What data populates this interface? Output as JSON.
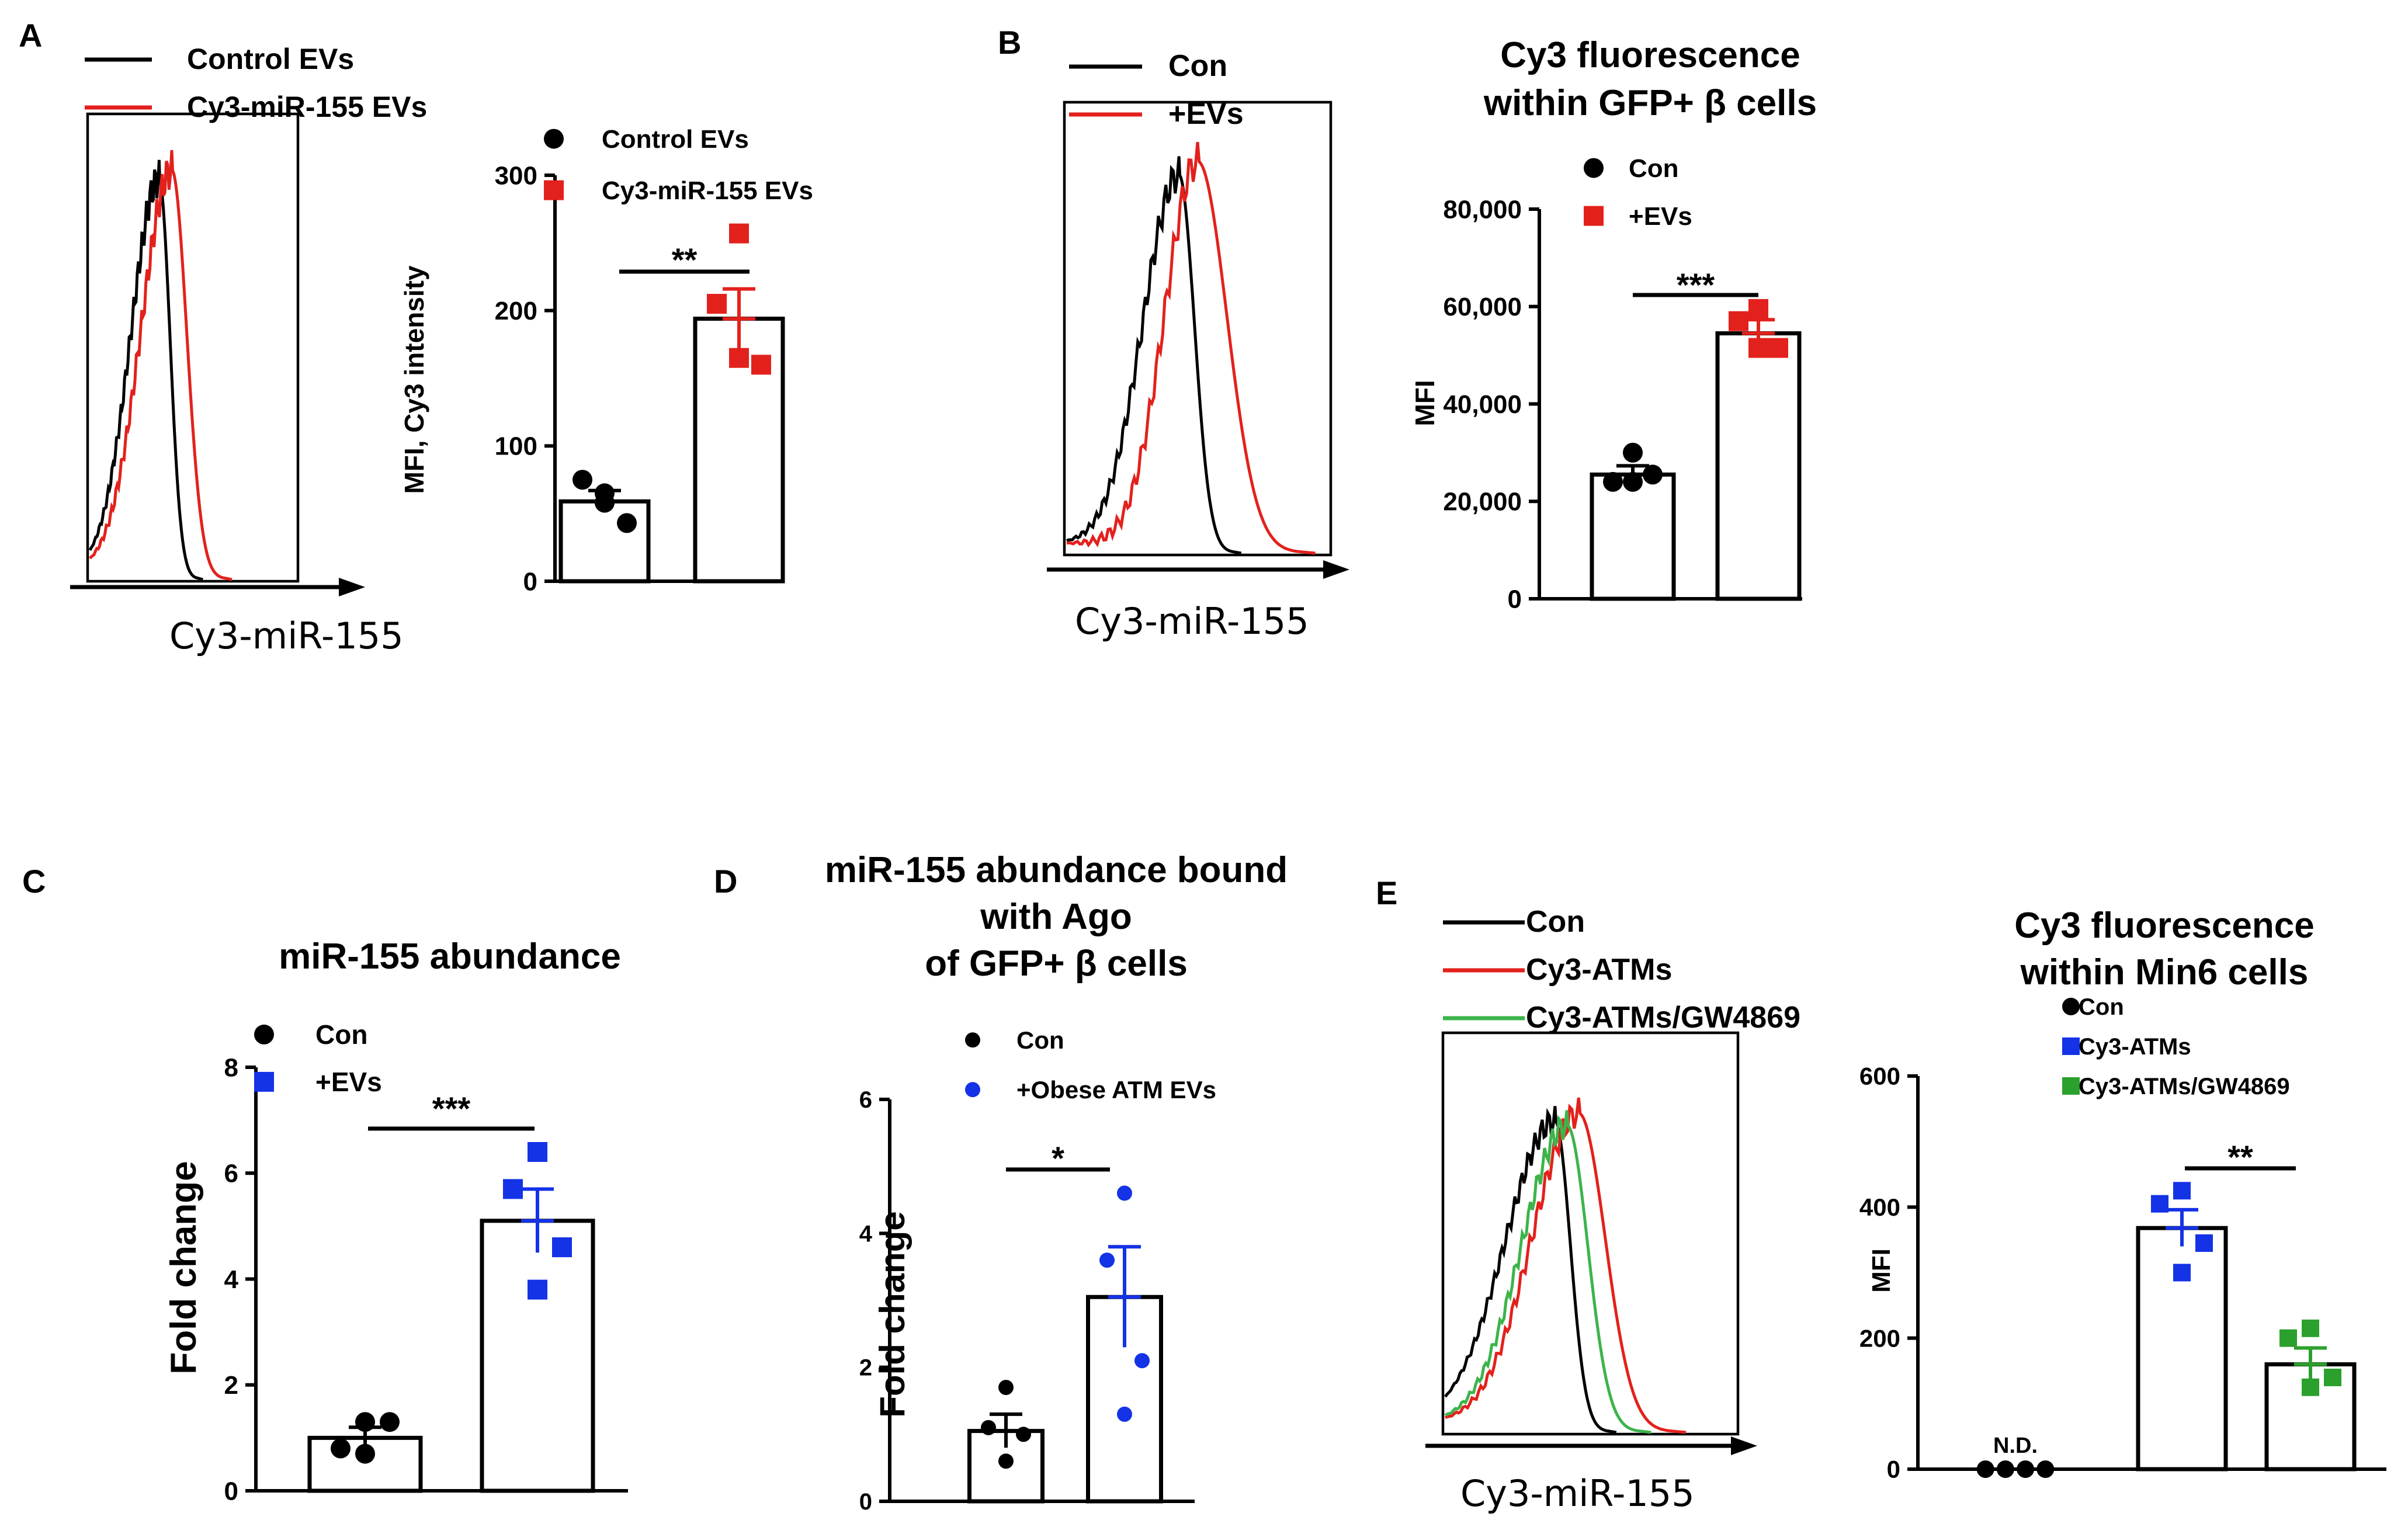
{
  "chart_data": [
    {
      "id": "A_hist",
      "panel": "A",
      "type": "histogram",
      "legend": [
        "Control EVs",
        "Cy3-miR-155 EVs"
      ],
      "legend_colors": [
        "#000000",
        "#e3211c"
      ],
      "xlabel": "Cy3-miR-155",
      "series": [
        {
          "name": "Control EVs",
          "color": "#000000",
          "peak": 0.34,
          "height": 0.86,
          "left_width": 0.24,
          "right_width": 0.08
        },
        {
          "name": "Cy3-miR-155 EVs",
          "color": "#e3211c",
          "peak": 0.4,
          "height": 0.88,
          "left_width": 0.26,
          "right_width": 0.11
        }
      ]
    },
    {
      "id": "A_bar",
      "panel": "A",
      "type": "bar",
      "ylabel": "MFI, Cy3 intensity",
      "ylim": [
        0,
        300
      ],
      "yticks": [
        0,
        100,
        200,
        300
      ],
      "ytick_labels": [
        "0",
        "100",
        "200",
        "300"
      ],
      "categories": [
        "Control EVs",
        "Cy3-miR-155 EVs"
      ],
      "legend": [
        {
          "label": "Control EVs",
          "marker": "circle",
          "color": "#000000"
        },
        {
          "label": "Cy3-miR-155 EVs",
          "marker": "square",
          "color": "#e3211c"
        }
      ],
      "means": [
        59,
        194
      ],
      "sem": [
        8,
        22
      ],
      "points": [
        [
          65,
          75,
          43,
          58
        ],
        [
          257,
          205,
          160,
          165
        ]
      ],
      "point_markers": [
        "circle",
        "square"
      ],
      "point_colors": [
        "#000000",
        "#e3211c"
      ],
      "significance": "**"
    },
    {
      "id": "B_hist",
      "panel": "B",
      "type": "histogram",
      "legend": [
        "Con",
        "+EVs"
      ],
      "legend_colors": [
        "#000000",
        "#e3211c"
      ],
      "xlabel": "Cy3-miR-155",
      "series": [
        {
          "name": "Con",
          "color": "#000000",
          "peak": 0.43,
          "height": 0.84,
          "left_width": 0.24,
          "right_width": 0.09
        },
        {
          "name": "+EVs",
          "color": "#e3211c",
          "peak": 0.5,
          "height": 0.87,
          "left_width": 0.22,
          "right_width": 0.17
        }
      ]
    },
    {
      "id": "B_bar",
      "panel": "B",
      "type": "bar",
      "title": [
        "Cy3 fluorescence",
        "within GFP+ β cells"
      ],
      "ylabel": "MFI",
      "ylim": [
        0,
        80000
      ],
      "yticks": [
        0,
        20000,
        40000,
        60000,
        80000
      ],
      "ytick_labels": [
        "0",
        "20,000",
        "40,000",
        "60,000",
        "80,000"
      ],
      "categories": [
        "Con",
        "+EVs"
      ],
      "legend": [
        {
          "label": "Con",
          "marker": "circle",
          "color": "#000000"
        },
        {
          "label": "+EVs",
          "marker": "square",
          "color": "#e3211c"
        }
      ],
      "means": [
        25500,
        54500
      ],
      "sem": [
        1800,
        2800
      ],
      "points": [
        [
          30000,
          24000,
          25500,
          24000
        ],
        [
          59500,
          57000,
          51500,
          51500
        ]
      ],
      "point_markers": [
        "circle",
        "square"
      ],
      "point_colors": [
        "#000000",
        "#e3211c"
      ],
      "significance": "***"
    },
    {
      "id": "C_bar",
      "panel": "C",
      "type": "bar",
      "title": [
        "miR-155 abundance"
      ],
      "ylabel": "Fold change",
      "ylim": [
        0,
        8
      ],
      "yticks": [
        0,
        2,
        4,
        6,
        8
      ],
      "ytick_labels": [
        "0",
        "2",
        "4",
        "6",
        "8"
      ],
      "categories": [
        "Con",
        "+EVs"
      ],
      "legend": [
        {
          "label": "Con",
          "marker": "circle",
          "color": "#000000"
        },
        {
          "label": "+EVs",
          "marker": "square",
          "color": "#1432e6"
        }
      ],
      "means": [
        1.0,
        5.1
      ],
      "sem": [
        0.2,
        0.6
      ],
      "points": [
        [
          1.3,
          0.8,
          1.3,
          0.7
        ],
        [
          6.4,
          5.7,
          4.6,
          3.8
        ]
      ],
      "point_markers": [
        "circle",
        "square"
      ],
      "point_colors": [
        "#000000",
        "#1432e6"
      ],
      "significance": "***"
    },
    {
      "id": "D_bar",
      "panel": "D",
      "type": "bar",
      "title": [
        "miR-155 abundance bound",
        "with Ago",
        "of GFP+ β cells"
      ],
      "ylabel": "Fold change",
      "ylim": [
        0,
        6
      ],
      "yticks": [
        0,
        2,
        4,
        6
      ],
      "ytick_labels": [
        "0",
        "2",
        "4",
        "6"
      ],
      "categories": [
        "Con",
        "+Obese ATM EVs"
      ],
      "legend": [
        {
          "label": "Con",
          "marker": "circle",
          "color": "#000000"
        },
        {
          "label": "+Obese ATM EVs",
          "marker": "circle",
          "color": "#1432e6"
        }
      ],
      "means": [
        1.05,
        3.05
      ],
      "sem": [
        0.25,
        0.75
      ],
      "points": [
        [
          1.7,
          1.1,
          1.0,
          0.6
        ],
        [
          4.6,
          3.6,
          2.1,
          1.3
        ]
      ],
      "point_markers": [
        "circle",
        "circle"
      ],
      "point_colors": [
        "#000000",
        "#1432e6"
      ],
      "significance": "*"
    },
    {
      "id": "E_hist",
      "panel": "E",
      "type": "histogram",
      "legend": [
        "Con",
        "Cy3-ATMs",
        "Cy3-ATMs/GW4869"
      ],
      "legend_colors": [
        "#000000",
        "#e3211c",
        "#3cb44b"
      ],
      "xlabel": "Cy3-miR-155",
      "series": [
        {
          "name": "Con",
          "color": "#000000",
          "peak": 0.38,
          "height": 0.78,
          "left_width": 0.3,
          "right_width": 0.08
        },
        {
          "name": "Cy3-ATMs",
          "color": "#e3211c",
          "peak": 0.46,
          "height": 0.8,
          "left_width": 0.28,
          "right_width": 0.14
        },
        {
          "name": "Cy3-ATMs/GW4869",
          "color": "#3cb44b",
          "peak": 0.42,
          "height": 0.77,
          "left_width": 0.27,
          "right_width": 0.11
        }
      ]
    },
    {
      "id": "E_bar",
      "panel": "E",
      "type": "bar",
      "title": [
        "Cy3 fluorescence",
        "within Min6 cells"
      ],
      "ylabel": "MFI",
      "ylim": [
        0,
        600
      ],
      "yticks": [
        0,
        200,
        400,
        600
      ],
      "ytick_labels": [
        "0",
        "200",
        "400",
        "600"
      ],
      "categories": [
        "Con",
        "Cy3-ATMs",
        "Cy3-ATMs/GW4869"
      ],
      "legend": [
        {
          "label": "Con",
          "marker": "circle",
          "color": "#000000"
        },
        {
          "label": "Cy3-ATMs",
          "marker": "square",
          "color": "#1432e6"
        },
        {
          "label": "Cy3-ATMs/GW4869",
          "marker": "square",
          "color": "#2ca02c"
        }
      ],
      "means": [
        0,
        368,
        160
      ],
      "sem": [
        0,
        28,
        25
      ],
      "points": [
        [
          0,
          0,
          0,
          0
        ],
        [
          425,
          405,
          345,
          300
        ],
        [
          215,
          200,
          140,
          125
        ]
      ],
      "point_markers": [
        "circle",
        "square",
        "square"
      ],
      "point_colors": [
        "#000000",
        "#1432e6",
        "#2ca02c"
      ],
      "bar_annotations": [
        "N.D.",
        "",
        ""
      ],
      "significance": "**",
      "significance_pair": [
        1,
        2
      ]
    }
  ],
  "panel_labels": [
    "A",
    "B",
    "C",
    "D",
    "E"
  ]
}
